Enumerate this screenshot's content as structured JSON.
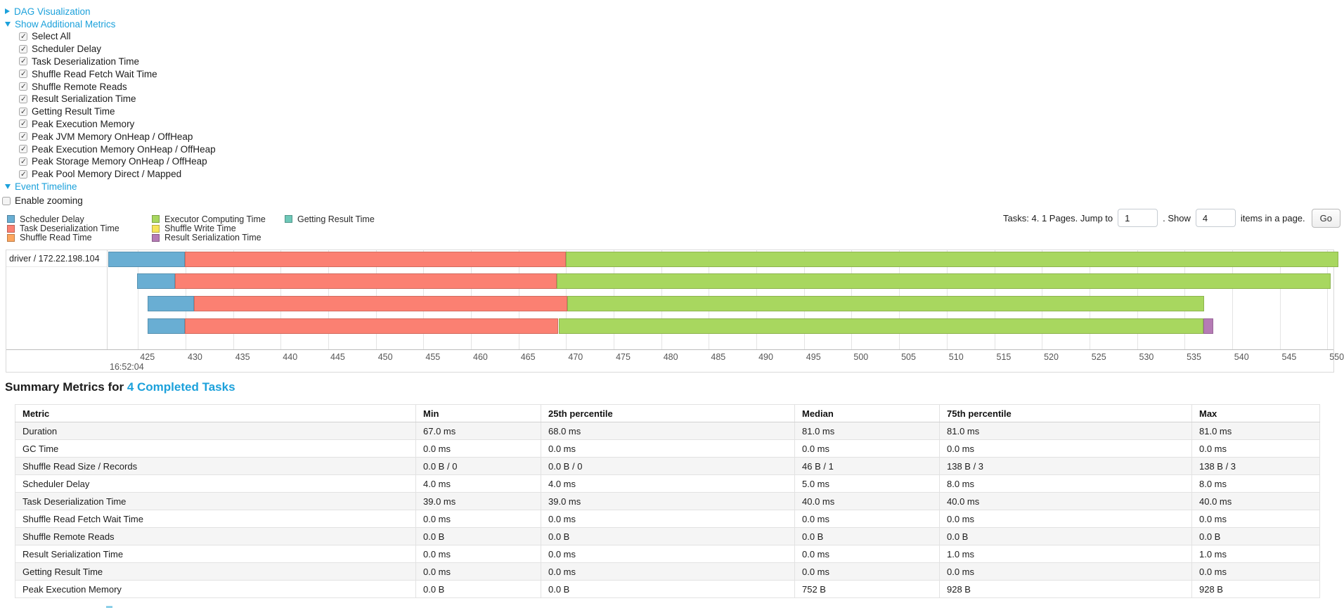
{
  "controls": {
    "dag": {
      "label": "DAG Visualization"
    },
    "metrics": {
      "label": "Show Additional Metrics"
    },
    "checkboxes": [
      {
        "label": "Select All",
        "checked": true
      },
      {
        "label": "Scheduler Delay",
        "checked": true
      },
      {
        "label": "Task Deserialization Time",
        "checked": true
      },
      {
        "label": "Shuffle Read Fetch Wait Time",
        "checked": true
      },
      {
        "label": "Shuffle Remote Reads",
        "checked": true
      },
      {
        "label": "Result Serialization Time",
        "checked": true
      },
      {
        "label": "Getting Result Time",
        "checked": true
      },
      {
        "label": "Peak Execution Memory",
        "checked": true
      },
      {
        "label": "Peak JVM Memory OnHeap / OffHeap",
        "checked": true
      },
      {
        "label": "Peak Execution Memory OnHeap / OffHeap",
        "checked": true
      },
      {
        "label": "Peak Storage Memory OnHeap / OffHeap",
        "checked": true
      },
      {
        "label": "Peak Pool Memory Direct / Mapped",
        "checked": true
      }
    ],
    "event_timeline": {
      "label": "Event Timeline"
    },
    "enable_zooming": {
      "label": "Enable zooming",
      "checked": false
    }
  },
  "legend": {
    "columns": [
      [
        {
          "label": "Scheduler Delay",
          "color": "#69aed3"
        },
        {
          "label": "Task Deserialization Time",
          "color": "#fb8072"
        },
        {
          "label": "Shuffle Read Time",
          "color": "#fda65e"
        }
      ],
      [
        {
          "label": "Executor Computing Time",
          "color": "#a8d75f"
        },
        {
          "label": "Shuffle Write Time",
          "color": "#f6e45c"
        },
        {
          "label": "Result Serialization Time",
          "color": "#b57bb5"
        }
      ],
      [
        {
          "label": "Getting Result Time",
          "color": "#6ec8b8"
        }
      ]
    ]
  },
  "pagination": {
    "summary": "Tasks: 4. 1 Pages. Jump to",
    "jump_value": "1",
    "show_label": ". Show",
    "show_value": "4",
    "suffix": "items in a page.",
    "go_label": "Go"
  },
  "chart_data": {
    "type": "timeline",
    "group_label": "driver / 172.22.198.104",
    "axis": {
      "min": 421.8,
      "max": 550.8,
      "tick_start": 425,
      "tick_step": 5,
      "tick_end": 550,
      "major_label": "16:52:04",
      "grid": true
    },
    "colors": {
      "scheduler-delay": "#69aed3",
      "task-deserialization-time": "#fb8072",
      "shuffle-read-time": "#fda65e",
      "executor-computing-time": "#a8d75f",
      "shuffle-write-time": "#f6e45c",
      "result-serialization-time": "#b57bb5",
      "getting-result-time": "#6ec8b8"
    },
    "tasks": [
      {
        "segments": [
          {
            "type": "scheduler-delay",
            "start": 421.9,
            "end": 429.9
          },
          {
            "type": "task-deserialization-time",
            "start": 429.9,
            "end": 470.0
          },
          {
            "type": "executor-computing-time",
            "start": 470.0,
            "end": 551.2
          }
        ]
      },
      {
        "segments": [
          {
            "type": "scheduler-delay",
            "start": 424.9,
            "end": 428.9
          },
          {
            "type": "task-deserialization-time",
            "start": 428.9,
            "end": 469.0
          },
          {
            "type": "executor-computing-time",
            "start": 469.0,
            "end": 550.4
          }
        ]
      },
      {
        "segments": [
          {
            "type": "scheduler-delay",
            "start": 426.0,
            "end": 430.9
          },
          {
            "type": "task-deserialization-time",
            "start": 430.9,
            "end": 470.1
          },
          {
            "type": "executor-computing-time",
            "start": 470.1,
            "end": 537.1
          }
        ]
      },
      {
        "segments": [
          {
            "type": "scheduler-delay",
            "start": 426.0,
            "end": 429.9
          },
          {
            "type": "task-deserialization-time",
            "start": 429.9,
            "end": 469.2
          },
          {
            "type": "executor-computing-time",
            "start": 469.2,
            "end": 537.0
          },
          {
            "type": "result-serialization-time",
            "start": 537.0,
            "end": 538.0
          }
        ]
      }
    ]
  },
  "summary": {
    "heading_prefix": "Summary Metrics for ",
    "heading_link": "4 Completed Tasks",
    "table": {
      "columns": [
        "Metric",
        "Min",
        "25th percentile",
        "Median",
        "75th percentile",
        "Max"
      ],
      "rows": [
        [
          "Duration",
          "67.0 ms",
          "68.0 ms",
          "81.0 ms",
          "81.0 ms",
          "81.0 ms"
        ],
        [
          "GC Time",
          "0.0 ms",
          "0.0 ms",
          "0.0 ms",
          "0.0 ms",
          "0.0 ms"
        ],
        [
          "Shuffle Read Size / Records",
          "0.0 B / 0",
          "0.0 B / 0",
          "46 B / 1",
          "138 B / 3",
          "138 B / 3"
        ],
        [
          "Scheduler Delay",
          "4.0 ms",
          "4.0 ms",
          "5.0 ms",
          "8.0 ms",
          "8.0 ms"
        ],
        [
          "Task Deserialization Time",
          "39.0 ms",
          "39.0 ms",
          "40.0 ms",
          "40.0 ms",
          "40.0 ms"
        ],
        [
          "Shuffle Read Fetch Wait Time",
          "0.0 ms",
          "0.0 ms",
          "0.0 ms",
          "0.0 ms",
          "0.0 ms"
        ],
        [
          "Shuffle Remote Reads",
          "0.0 B",
          "0.0 B",
          "0.0 B",
          "0.0 B",
          "0.0 B"
        ],
        [
          "Result Serialization Time",
          "0.0 ms",
          "0.0 ms",
          "0.0 ms",
          "1.0 ms",
          "1.0 ms"
        ],
        [
          "Getting Result Time",
          "0.0 ms",
          "0.0 ms",
          "0.0 ms",
          "0.0 ms",
          "0.0 ms"
        ],
        [
          "Peak Execution Memory",
          "0.0 B",
          "0.0 B",
          "752 B",
          "928 B",
          "928 B"
        ]
      ]
    }
  }
}
